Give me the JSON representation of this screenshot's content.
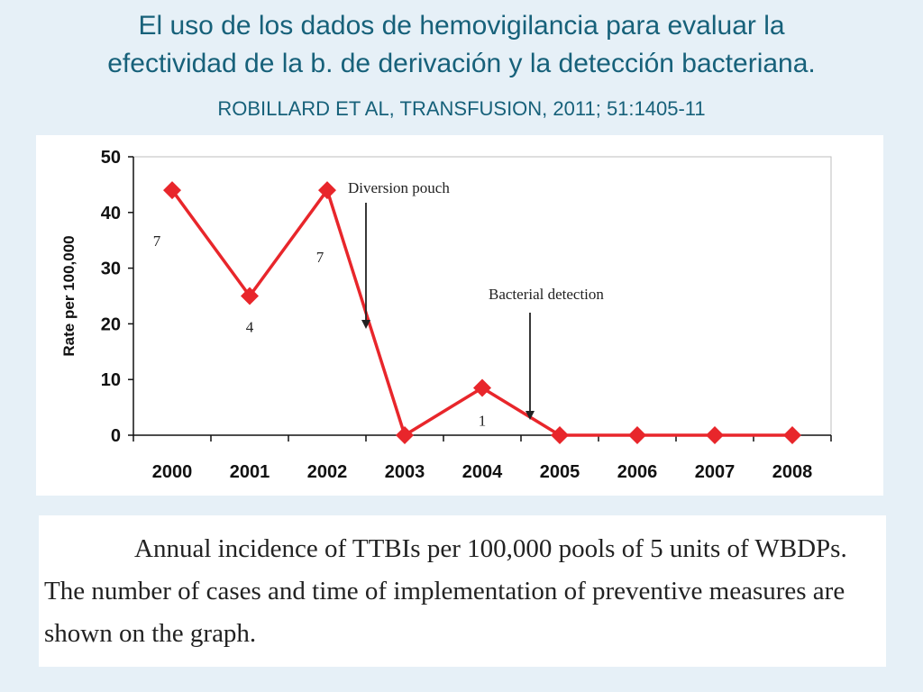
{
  "title_line1": "El uso de los dados de hemovigilancia para evaluar la",
  "title_line2": "efectividad de la b. de derivación y la detección bacteriana.",
  "citation": "ROBILLARD ET AL,  TRANSFUSION, 2011; 51:1405-11",
  "caption": "Annual incidence of TTBIs per 100,000 pools of 5 units of WBDPs. The number of cases and time of implementation of preventive measures are shown on the graph.",
  "chart_data": {
    "type": "line",
    "categories": [
      "2000",
      "2001",
      "2002",
      "2003",
      "2004",
      "2005",
      "2006",
      "2007",
      "2008"
    ],
    "series": [
      {
        "values": [
          44,
          25,
          44,
          0,
          8.5,
          0,
          0,
          0,
          0
        ],
        "color": "#e8262b"
      }
    ],
    "ylabel": "Rate per 100,000",
    "xlabel": "",
    "ylim": [
      0,
      50
    ],
    "yticks": [
      "0",
      "10",
      "20",
      "30",
      "40",
      "50"
    ],
    "grid": false,
    "case_counts": [
      {
        "year": "2000",
        "label": "7"
      },
      {
        "year": "2001",
        "label": "4"
      },
      {
        "year": "2002",
        "label": "7"
      },
      {
        "year": "2004",
        "label": "1"
      }
    ],
    "annotations": [
      {
        "text": "Diversion pouch",
        "between": [
          "2002",
          "2003"
        ]
      },
      {
        "text": "Bacterial detection",
        "between": [
          "2004",
          "2005"
        ]
      }
    ]
  }
}
